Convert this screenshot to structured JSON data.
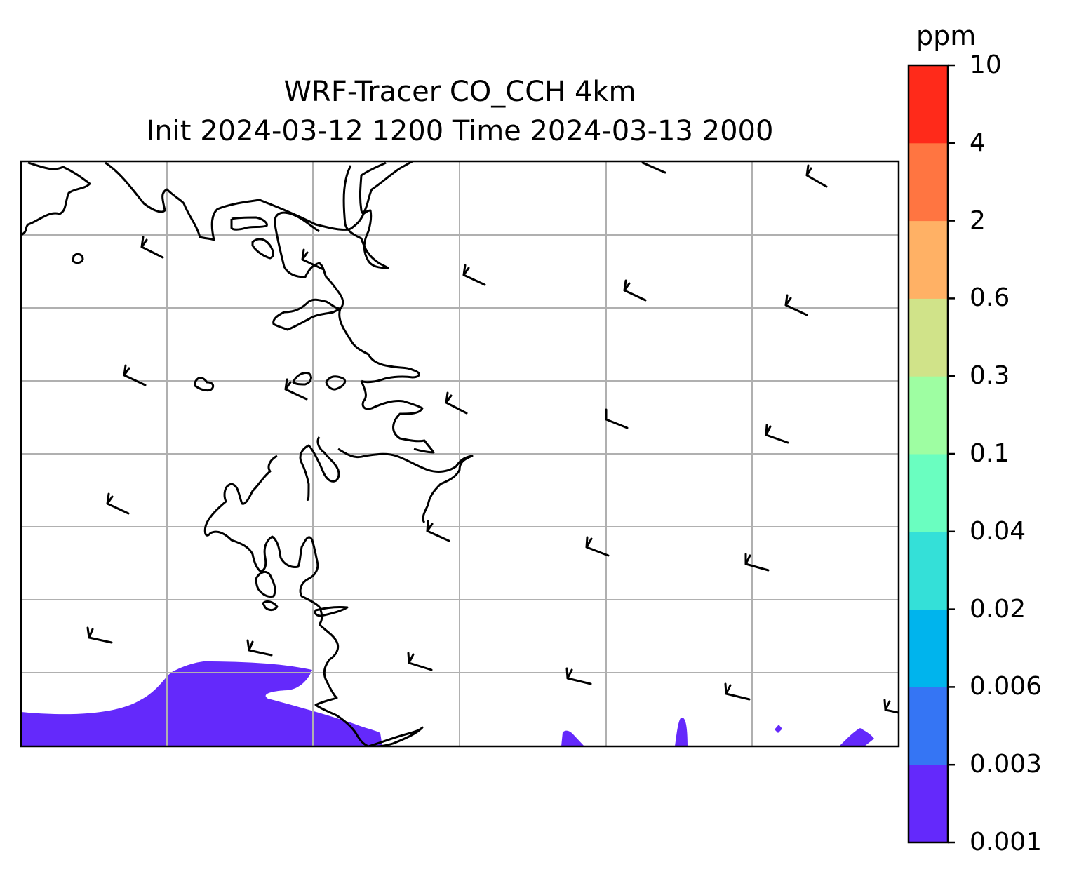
{
  "title_line1": "WRF-Tracer CO_CCH 4km",
  "title_line2": "Init 2024-03-12 1200 Time 2024-03-13 2000",
  "colorbar": {
    "unit": "ppm",
    "ticks": [
      "0.001",
      "0.003",
      "0.006",
      "0.02",
      "0.04",
      "0.1",
      "0.3",
      "0.6",
      "2",
      "4",
      "10"
    ],
    "colors": [
      "#6429fb",
      "#3575f4",
      "#00b4ed",
      "#34e0d8",
      "#6afec0",
      "#9efea2",
      "#d0e389",
      "#ffb165",
      "#ff7541",
      "#ff2a1a"
    ]
  },
  "map": {
    "gridlines": "on",
    "grid_color": "#b0b0b0",
    "coastline_color": "#000000",
    "tracer_fill_color": "#6429fb",
    "tracer_fill_level": "0.001–0.003 ppm",
    "wind_barbs": "present"
  }
}
